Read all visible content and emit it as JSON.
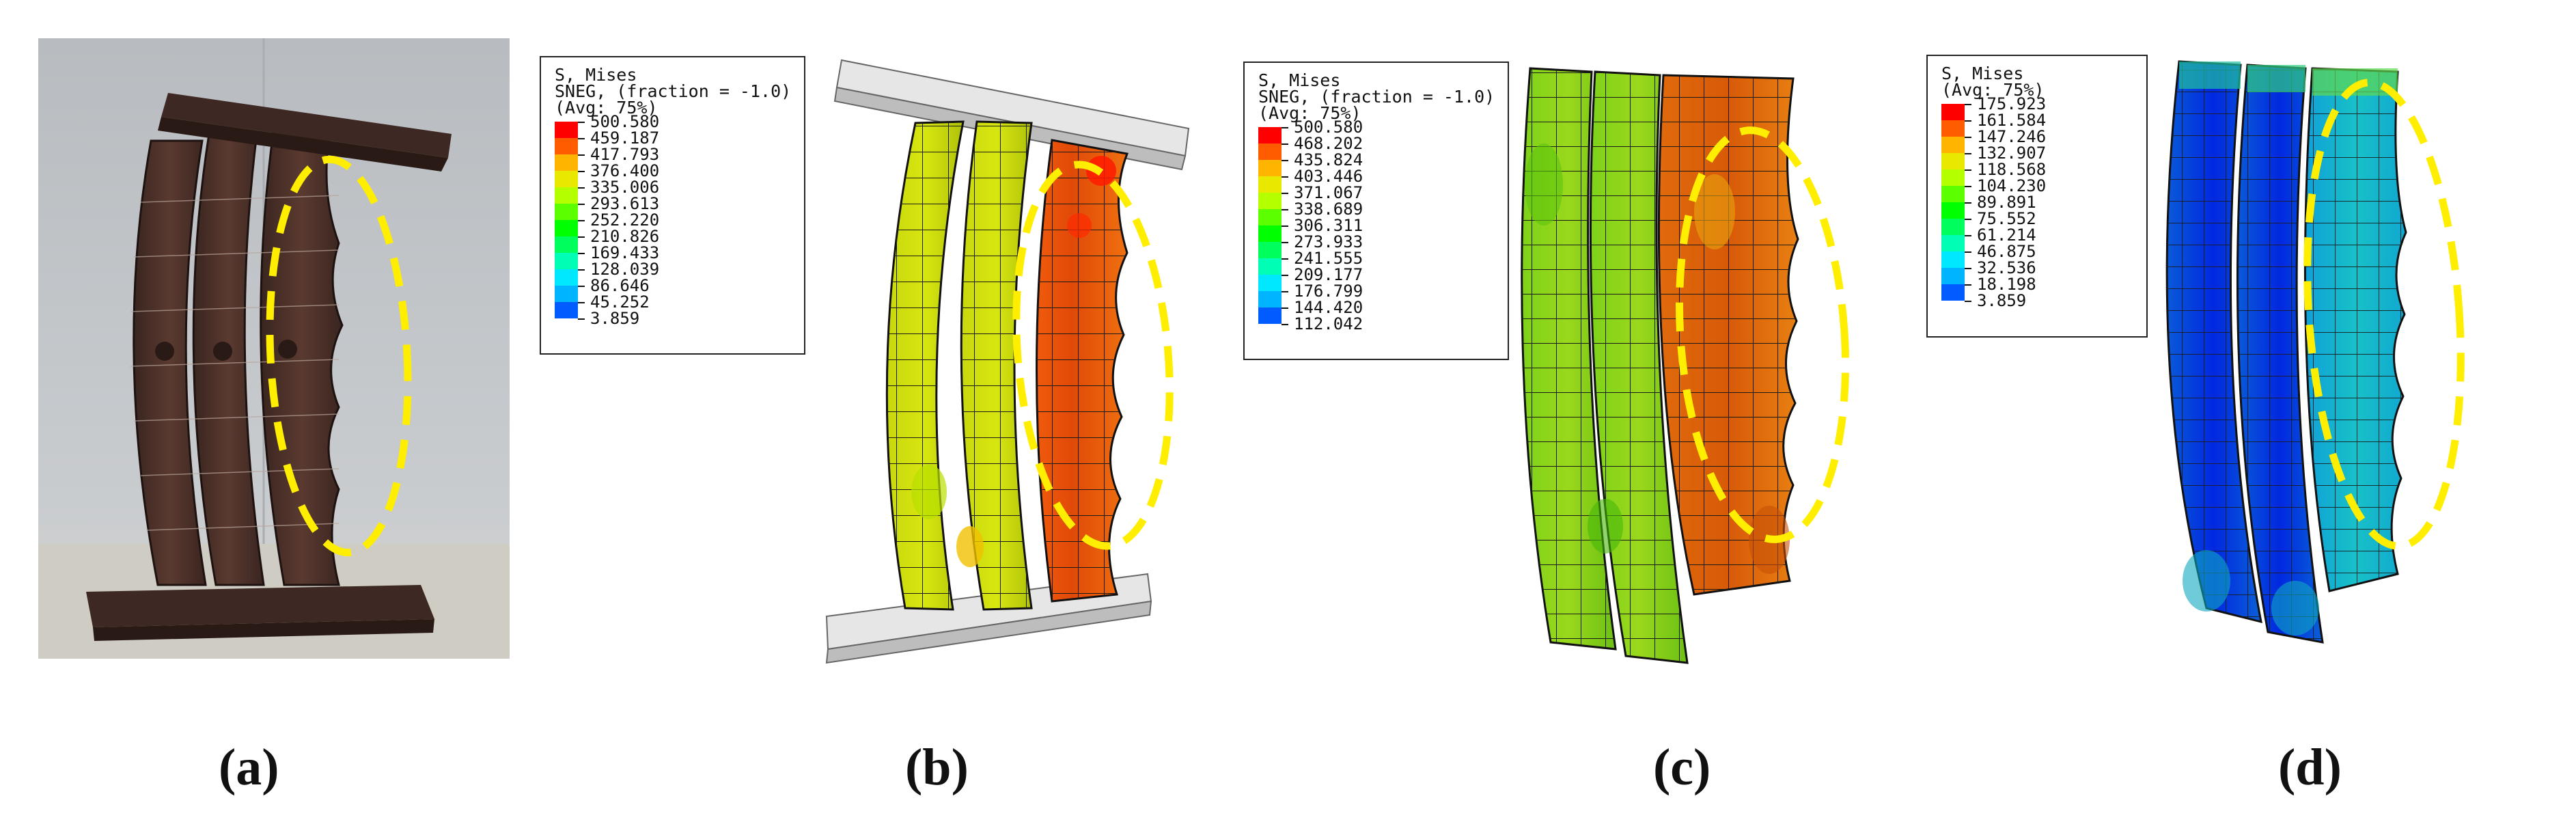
{
  "panels": [
    {
      "id": "a",
      "caption": "(a)"
    },
    {
      "id": "b",
      "caption": "(b)",
      "legend": {
        "title_lines": [
          "S, Mises",
          "SNEG, (fraction = -1.0)",
          "(Avg: 75%)"
        ],
        "values": [
          "500.580",
          "459.187",
          "417.793",
          "376.400",
          "335.006",
          "293.613",
          "252.220",
          "210.826",
          "169.433",
          "128.039",
          "86.646",
          "45.252",
          "3.859"
        ]
      }
    },
    {
      "id": "c",
      "caption": "(c)",
      "legend": {
        "title_lines": [
          "S, Mises",
          "SNEG, (fraction = -1.0)",
          "(Avg: 75%)"
        ],
        "values": [
          "500.580",
          "468.202",
          "435.824",
          "403.446",
          "371.067",
          "338.689",
          "306.311",
          "273.933",
          "241.555",
          "209.177",
          "176.799",
          "144.420",
          "112.042"
        ]
      }
    },
    {
      "id": "d",
      "caption": "(d)",
      "legend": {
        "title_lines": [
          "S, Mises",
          "(Avg: 75%)"
        ],
        "values": [
          "175.923",
          "161.584",
          "147.246",
          "132.907",
          "118.568",
          "104.230",
          "89.891",
          "75.552",
          "61.214",
          "46.875",
          "32.536",
          "18.198",
          "3.859"
        ]
      }
    }
  ],
  "colors": {
    "contour_scale": [
      "#ff0000",
      "#ff5c00",
      "#ffb400",
      "#e8e800",
      "#b4ff00",
      "#5cff00",
      "#00ff00",
      "#00ff5c",
      "#00ffb4",
      "#00e8ff",
      "#00b4ff",
      "#005cff",
      "#0000ff"
    ],
    "highlight": "#ffee00"
  }
}
